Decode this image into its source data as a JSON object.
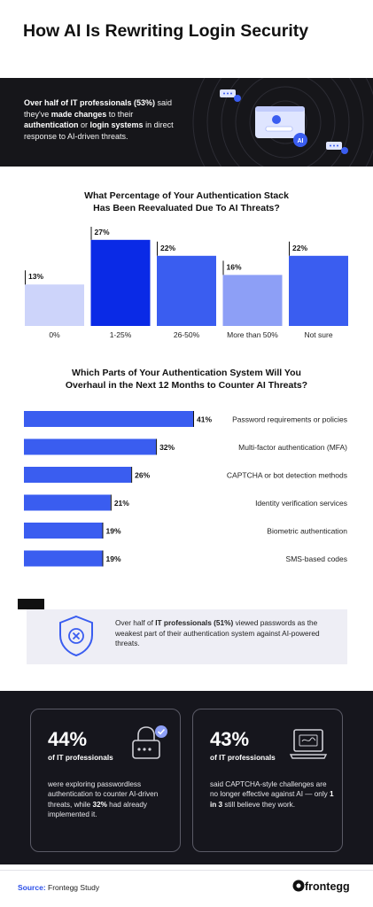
{
  "title": "How AI Is Rewriting Login Security",
  "banner": {
    "t1": "Over half of IT professionals (53%)",
    "t2": " said they've ",
    "t3": "made changes",
    "t4": " to their ",
    "t5": "authentication",
    "t6": " or ",
    "t7": "login systems",
    "t8": " in direct response to AI-driven threats.",
    "badge": "AI"
  },
  "chart_data": [
    {
      "type": "bar",
      "title": "What Percentage of Your Authentication Stack Has Been Reevaluated Due To AI Threats?",
      "title_line1": "What Percentage of Your Authentication Stack",
      "title_line2": "Has Been Reevaluated Due To AI Threats?",
      "categories": [
        "0%",
        "1-25%",
        "26-50%",
        "More than 50%",
        "Not sure"
      ],
      "values": [
        13,
        27,
        22,
        16,
        22
      ],
      "value_labels": [
        "13%",
        "27%",
        "22%",
        "16%",
        "22%"
      ],
      "colors": [
        "#cdd4fa",
        "#0a2ae6",
        "#3a5df0",
        "#8d9ff6",
        "#3a5df0"
      ],
      "ylim": [
        0,
        30
      ],
      "grid": false
    },
    {
      "type": "bar",
      "orientation": "horizontal",
      "title": "Which Parts of Your Authentication System Will You Overhaul in the Next 12 Months to Counter AI Threats?",
      "title_line1": "Which Parts of Your Authentication System Will You",
      "title_line2": "Overhaul in the Next 12 Months to Counter AI Threats?",
      "categories": [
        "Password requirements or policies",
        "Multi-factor authentication (MFA)",
        "CAPTCHA or bot detection methods",
        "Identity verification services",
        "Biometric authentication",
        "SMS-based codes"
      ],
      "values": [
        41,
        32,
        26,
        21,
        19,
        19
      ],
      "value_labels": [
        "41%",
        "32%",
        "26%",
        "21%",
        "19%",
        "19%"
      ],
      "color": "#3a5df0",
      "xlim": [
        0,
        41
      ],
      "grid": false
    }
  ],
  "insight": {
    "t1": "Over half of ",
    "t2": "IT professionals (51%)",
    "t3": " viewed passwords as the weakest part of their authentication system against AI-powered threats."
  },
  "cards": [
    {
      "number": "44%",
      "label": "of IT professionals",
      "t1": "were exploring passwordless authentication to counter AI-driven threats, while ",
      "t2": "32%",
      "t3": " had already implemented it."
    },
    {
      "number": "43%",
      "label": "of IT professionals",
      "t1": "said CAPTCHA-style challenges are no longer effective against AI — only ",
      "t2": "1 in 3",
      "t3": " still believe they work."
    }
  ],
  "footer": {
    "source_label": "Source:",
    "source_text": " Frontegg Study",
    "logo": "frontegg"
  },
  "colors": {
    "accent": "#3a5df0",
    "dark": "#16161a"
  }
}
